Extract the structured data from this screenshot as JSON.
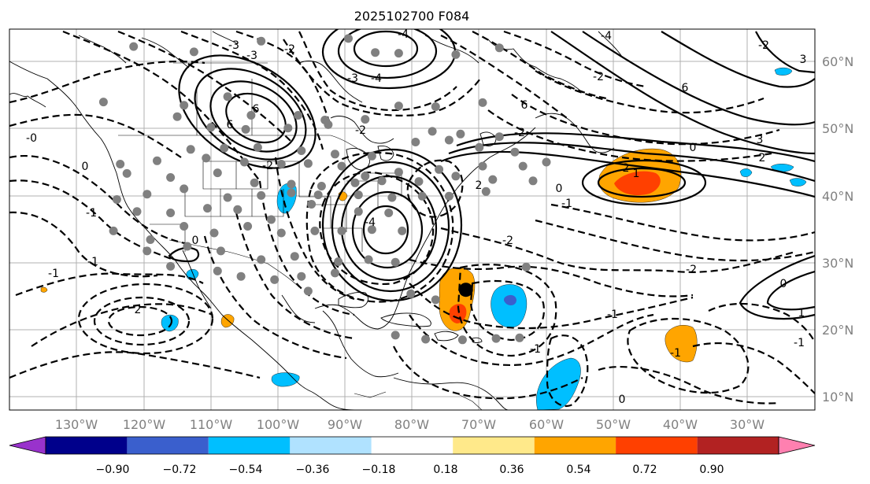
{
  "title": "2025102700 F084",
  "lon_labels": [
    "130°W",
    "120°W",
    "110°W",
    "100°W",
    "90°W",
    "80°W",
    "70°W",
    "60°W",
    "50°W",
    "40°W",
    "30°W"
  ],
  "lat_labels": [
    "10°N",
    "20°N",
    "30°N",
    "40°N",
    "50°N",
    "60°N"
  ],
  "colorbar": {
    "ticks": [
      "−0.90",
      "−0.72",
      "−0.54",
      "−0.36",
      "−0.18",
      "0.18",
      "0.36",
      "0.54",
      "0.72",
      "0.90"
    ],
    "colors": [
      "#9932cc",
      "#00008b",
      "#3a5fcd",
      "#00bfff",
      "#b0e2ff",
      "#ffffff",
      "#ffe98a",
      "#ffa500",
      "#ff4000",
      "#b22222",
      "#ff80b0"
    ]
  },
  "contour_labels": [
    "6",
    "6",
    "-4",
    "-3",
    "-2",
    "-2",
    "-4",
    "-3",
    "-2",
    "-2",
    "6",
    "6",
    "-4",
    "3",
    "-0",
    "2",
    "-1",
    "-1",
    "0",
    "-2",
    "-1",
    "-1",
    "0",
    "0",
    "1",
    "0",
    "-1",
    "0",
    "2",
    "-2",
    "-2",
    "-1",
    "-1",
    "-1",
    "1",
    "-2",
    "2",
    "3",
    "2",
    "0",
    "-4",
    "-3",
    "0"
  ],
  "icons": {
    "dots": "station-dot-icon",
    "storm": "storm-center-icon"
  },
  "chart_data": {
    "type": "map",
    "title": "2025102700 F084",
    "x_range": [
      -138,
      -18
    ],
    "y_range": [
      8,
      65
    ],
    "grid": true,
    "colorbar_levels": [
      -0.9,
      -0.72,
      -0.54,
      -0.36,
      -0.18,
      0.18,
      0.36,
      0.54,
      0.72,
      0.9
    ],
    "storm_center": {
      "lon": -70,
      "lat": 26
    },
    "station_points": [
      [
        -119.5,
        62.4
      ],
      [
        -110.5,
        61.6
      ],
      [
        -100.5,
        63.2
      ],
      [
        -87.5,
        63.6
      ],
      [
        -83.5,
        61.5
      ],
      [
        -80,
        61.4
      ],
      [
        -71.5,
        61.2
      ],
      [
        -65,
        62.2
      ],
      [
        -124,
        54.1
      ],
      [
        -112,
        53.6
      ],
      [
        -105.5,
        54.9
      ],
      [
        -102,
        52.1
      ],
      [
        -95,
        52.1
      ],
      [
        -91,
        51.4
      ],
      [
        -85,
        51.5
      ],
      [
        -80,
        53.5
      ],
      [
        -74.5,
        53.4
      ],
      [
        -67.5,
        54.0
      ],
      [
        -113,
        51.9
      ],
      [
        -108,
        50.3
      ],
      [
        -102.8,
        50.0
      ],
      [
        -96.5,
        50.2
      ],
      [
        -90.5,
        50.7
      ],
      [
        -75,
        49.7
      ],
      [
        -70.8,
        49.3
      ],
      [
        -65,
        48.9
      ],
      [
        -111,
        47.0
      ],
      [
        -106,
        47.2
      ],
      [
        -101,
        47.3
      ],
      [
        -94.5,
        46.8
      ],
      [
        -89.5,
        46.3
      ],
      [
        -84,
        46.0
      ],
      [
        -77.5,
        48.1
      ],
      [
        -72.5,
        48.4
      ],
      [
        -68,
        47.3
      ],
      [
        -62.7,
        46.6
      ],
      [
        -121.5,
        44.8
      ],
      [
        -116,
        45.3
      ],
      [
        -108.7,
        45.7
      ],
      [
        -103,
        45.1
      ],
      [
        -97.5,
        44.8
      ],
      [
        -93.5,
        44.9
      ],
      [
        -88.5,
        44.5
      ],
      [
        -85,
        43.0
      ],
      [
        -80,
        43.6
      ],
      [
        -74,
        44.0
      ],
      [
        -67.5,
        44.5
      ],
      [
        -61.5,
        44.5
      ],
      [
        -58,
        45.1
      ],
      [
        -120.5,
        43.4
      ],
      [
        -114,
        42.8
      ],
      [
        -107,
        43.5
      ],
      [
        -101.5,
        42.0
      ],
      [
        -96,
        41.8
      ],
      [
        -91.5,
        41.5
      ],
      [
        -86.5,
        42.0
      ],
      [
        -82.5,
        42.3
      ],
      [
        -77,
        42.2
      ],
      [
        -71.5,
        43.0
      ],
      [
        -66,
        42.5
      ],
      [
        -60,
        42.3
      ],
      [
        -122,
        39.5
      ],
      [
        -117.5,
        40.3
      ],
      [
        -112,
        41.1
      ],
      [
        -105.5,
        39.8
      ],
      [
        -100.5,
        40.1
      ],
      [
        -96,
        40.5
      ],
      [
        -92,
        40.2
      ],
      [
        -86,
        40.2
      ],
      [
        -81,
        39.8
      ],
      [
        -76.5,
        40.0
      ],
      [
        -72.5,
        40.0
      ],
      [
        -67,
        40.7
      ],
      [
        -119,
        37.7
      ],
      [
        -114,
        37.5
      ],
      [
        -108.5,
        38.2
      ],
      [
        -104,
        38.0
      ],
      [
        -99,
        36.5
      ],
      [
        -93,
        38.8
      ],
      [
        -86,
        37.7
      ],
      [
        -81.5,
        37.5
      ],
      [
        -122.5,
        34.8
      ],
      [
        -117,
        33.5
      ],
      [
        -112,
        35.5
      ],
      [
        -107.5,
        34.5
      ],
      [
        -102.5,
        35.5
      ],
      [
        -97.5,
        34.5
      ],
      [
        -92.5,
        34.8
      ],
      [
        -88.5,
        34.8
      ],
      [
        -84,
        35.0
      ],
      [
        -79.5,
        34.8
      ],
      [
        -117.5,
        31.8
      ],
      [
        -111.5,
        32.5
      ],
      [
        -106.5,
        31.8
      ],
      [
        -100.5,
        30.5
      ],
      [
        -95.5,
        31.0
      ],
      [
        -89,
        30.2
      ],
      [
        -84.5,
        30.5
      ],
      [
        -80.5,
        30.1
      ],
      [
        -114,
        29.5
      ],
      [
        -107,
        28.8
      ],
      [
        -103.5,
        28.0
      ],
      [
        -98.5,
        27.5
      ],
      [
        -94.5,
        28.0
      ],
      [
        -89.5,
        28.5
      ],
      [
        -93.5,
        25.8
      ],
      [
        -78.2,
        25.4
      ],
      [
        -74.5,
        24.5
      ],
      [
        -61,
        29.4
      ],
      [
        -80.5,
        19.2
      ],
      [
        -76,
        18.6
      ],
      [
        -65.5,
        18.7
      ],
      [
        -62,
        18.8
      ],
      [
        -70.5,
        18.5
      ]
    ]
  }
}
